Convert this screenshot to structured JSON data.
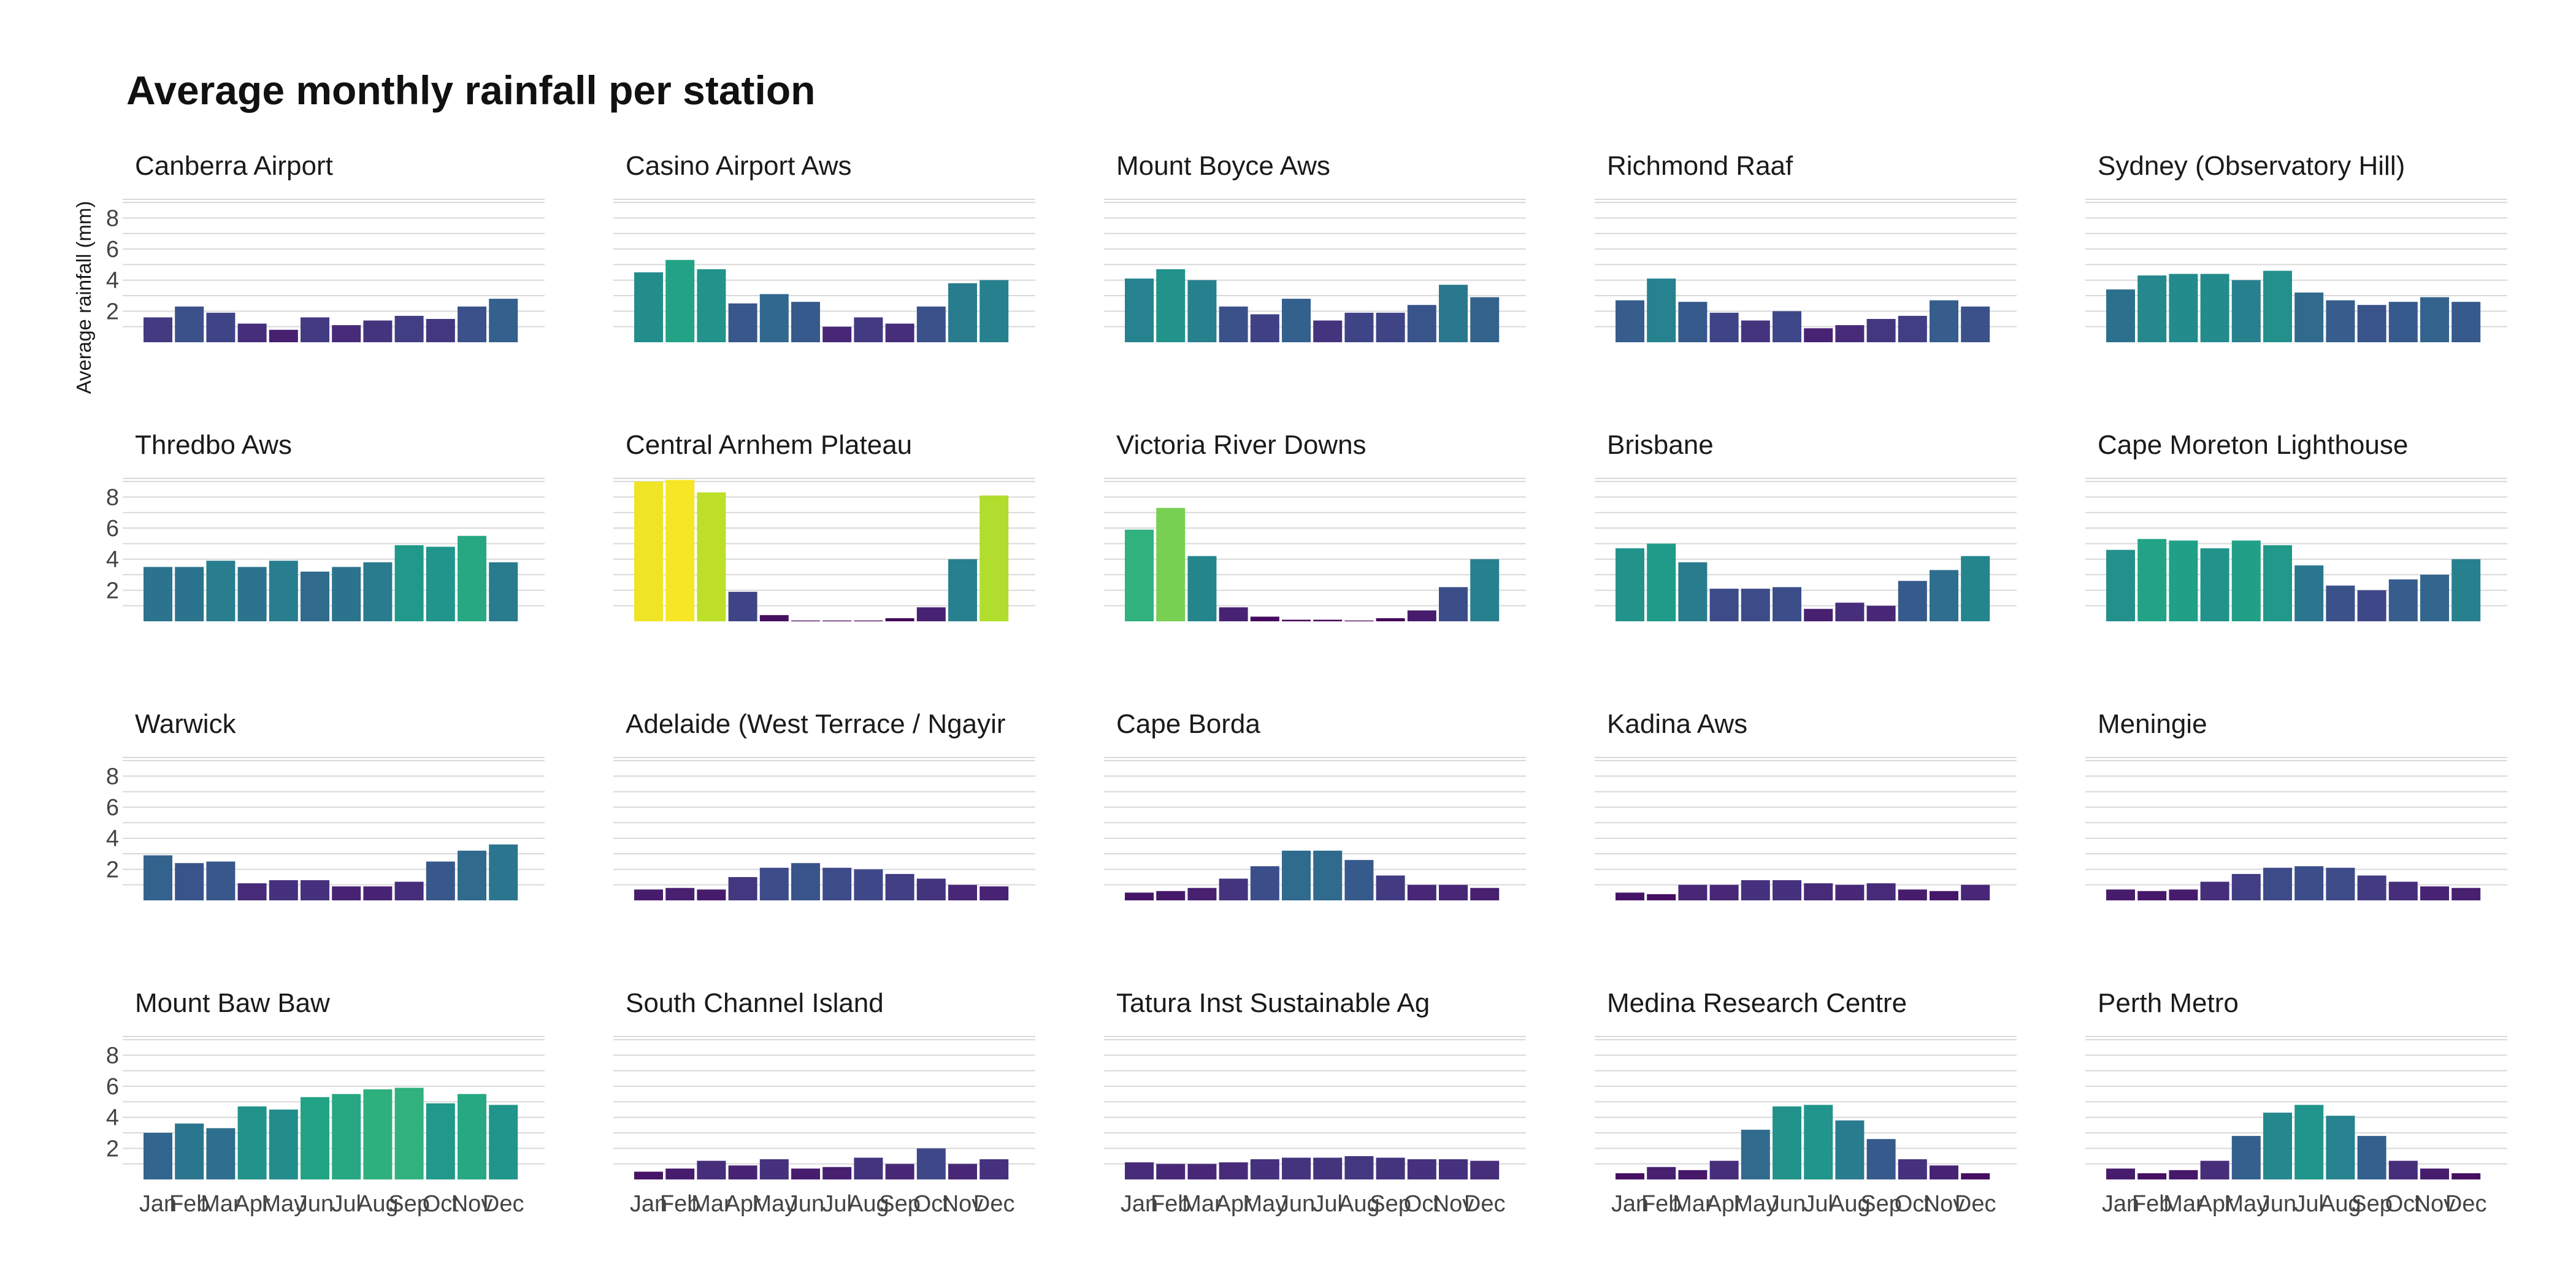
{
  "chart_data": {
    "type": "bar",
    "title": "Average monthly rainfall per station",
    "ylabel": "Average rainfall (mm)",
    "xlabel": "",
    "categories": [
      "Jan",
      "Feb",
      "Mar",
      "Apr",
      "May",
      "Jun",
      "Jul",
      "Aug",
      "Sep",
      "Oct",
      "Nov",
      "Dec"
    ],
    "y_ticks": [
      2,
      4,
      6,
      8
    ],
    "ylim": [
      0,
      9.2
    ],
    "grid": true,
    "color_scale": "viridis",
    "color_domain": [
      0,
      9.2
    ],
    "facets": [
      {
        "name": "Canberra Airport",
        "values": [
          1.6,
          2.3,
          1.9,
          1.2,
          0.8,
          1.6,
          1.1,
          1.4,
          1.7,
          1.5,
          2.3,
          2.8
        ]
      },
      {
        "name": "Casino Airport Aws",
        "values": [
          4.5,
          5.3,
          4.7,
          2.5,
          3.1,
          2.6,
          1.0,
          1.6,
          1.2,
          2.3,
          3.8,
          4.0
        ]
      },
      {
        "name": "Mount Boyce Aws",
        "values": [
          4.1,
          4.7,
          4.0,
          2.3,
          1.8,
          2.8,
          1.4,
          1.9,
          1.9,
          2.4,
          3.7,
          2.9
        ]
      },
      {
        "name": "Richmond Raaf",
        "values": [
          2.7,
          4.1,
          2.6,
          1.9,
          1.4,
          2.0,
          0.9,
          1.1,
          1.5,
          1.7,
          2.7,
          2.3
        ]
      },
      {
        "name": "Sydney (Observatory Hill)",
        "values": [
          3.4,
          4.3,
          4.4,
          4.4,
          4.0,
          4.6,
          3.2,
          2.7,
          2.4,
          2.6,
          2.9,
          2.6
        ]
      },
      {
        "name": "Thredbo Aws",
        "values": [
          3.5,
          3.5,
          3.9,
          3.5,
          3.9,
          3.2,
          3.5,
          3.8,
          4.9,
          4.8,
          5.5,
          3.8
        ]
      },
      {
        "name": "Central Arnhem Plateau",
        "values": [
          9.0,
          9.1,
          8.3,
          1.9,
          0.4,
          0.05,
          0.05,
          0.05,
          0.2,
          0.9,
          4.0,
          8.1
        ]
      },
      {
        "name": "Victoria River Downs",
        "values": [
          5.9,
          7.3,
          4.2,
          0.9,
          0.3,
          0.1,
          0.1,
          0.05,
          0.2,
          0.7,
          2.2,
          4.0
        ]
      },
      {
        "name": "Brisbane",
        "values": [
          4.7,
          5.0,
          3.8,
          2.1,
          2.1,
          2.2,
          0.8,
          1.2,
          1.0,
          2.6,
          3.3,
          4.2
        ]
      },
      {
        "name": "Cape Moreton Lighthouse",
        "values": [
          4.6,
          5.3,
          5.2,
          4.7,
          5.2,
          4.9,
          3.6,
          2.3,
          2.0,
          2.7,
          3.0,
          4.0
        ]
      },
      {
        "name": "Warwick",
        "values": [
          2.9,
          2.4,
          2.5,
          1.1,
          1.3,
          1.3,
          0.9,
          0.9,
          1.2,
          2.5,
          3.2,
          3.6
        ]
      },
      {
        "name": "Adelaide (West Terrace / Ngayir",
        "values": [
          0.7,
          0.8,
          0.7,
          1.5,
          2.1,
          2.4,
          2.1,
          2.0,
          1.7,
          1.4,
          1.0,
          0.9
        ]
      },
      {
        "name": "Cape Borda",
        "values": [
          0.5,
          0.6,
          0.8,
          1.4,
          2.2,
          3.2,
          3.2,
          2.6,
          1.6,
          1.0,
          1.0,
          0.8
        ]
      },
      {
        "name": "Kadina Aws",
        "values": [
          0.5,
          0.4,
          1.0,
          1.0,
          1.3,
          1.3,
          1.1,
          1.0,
          1.1,
          0.7,
          0.6,
          1.0
        ]
      },
      {
        "name": "Meningie",
        "values": [
          0.7,
          0.6,
          0.7,
          1.2,
          1.7,
          2.1,
          2.2,
          2.1,
          1.6,
          1.2,
          0.9,
          0.8
        ]
      },
      {
        "name": "Mount Baw Baw",
        "values": [
          3.0,
          3.6,
          3.3,
          4.7,
          4.5,
          5.3,
          5.5,
          5.8,
          5.9,
          4.9,
          5.5,
          4.8
        ]
      },
      {
        "name": "South Channel Island",
        "values": [
          0.5,
          0.7,
          1.2,
          0.9,
          1.3,
          0.7,
          0.8,
          1.4,
          1.0,
          2.0,
          1.0,
          1.3
        ]
      },
      {
        "name": "Tatura Inst Sustainable Ag",
        "values": [
          1.1,
          1.0,
          1.0,
          1.1,
          1.3,
          1.4,
          1.4,
          1.5,
          1.4,
          1.3,
          1.3,
          1.2
        ]
      },
      {
        "name": "Medina Research Centre",
        "values": [
          0.4,
          0.8,
          0.6,
          1.2,
          3.2,
          4.7,
          4.8,
          3.8,
          2.6,
          1.3,
          0.9,
          0.4
        ]
      },
      {
        "name": "Perth Metro",
        "values": [
          0.7,
          0.4,
          0.6,
          1.2,
          2.8,
          4.3,
          4.8,
          4.1,
          2.8,
          1.2,
          0.7,
          0.4
        ]
      }
    ]
  }
}
